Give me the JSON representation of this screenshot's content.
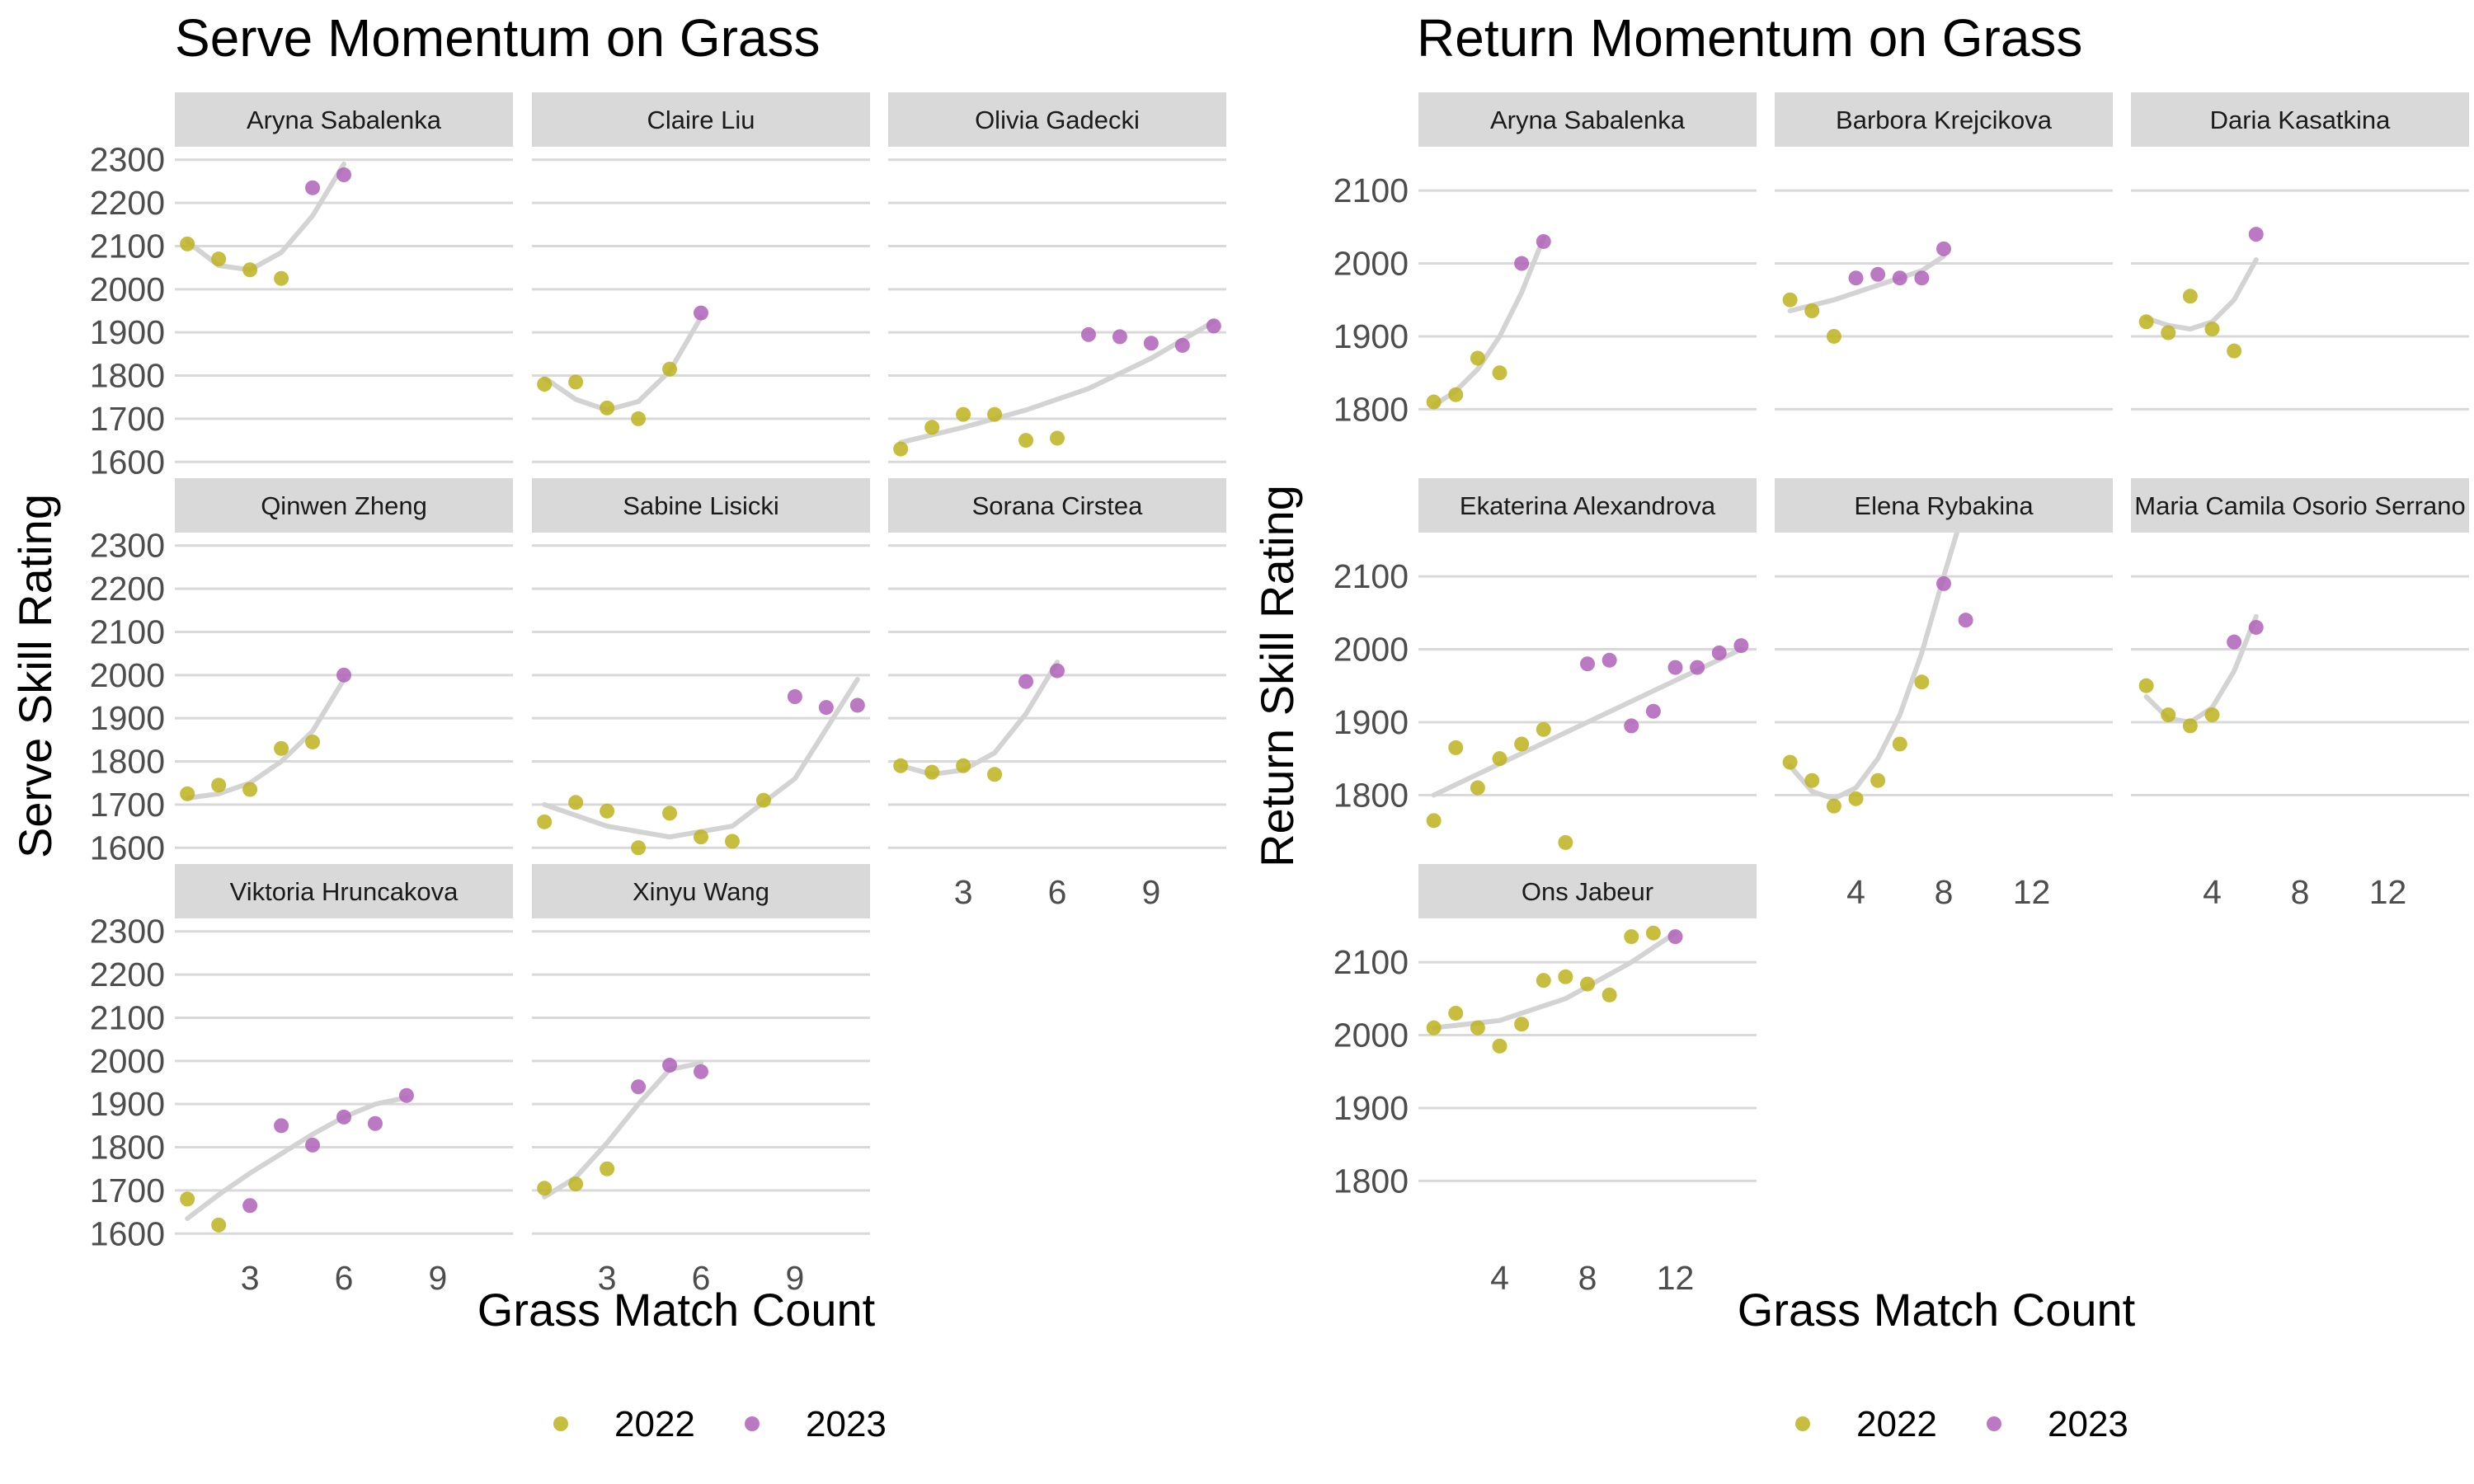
{
  "colors": {
    "2022": "#bdb31f",
    "2023": "#b062b8",
    "trend": "#d3d3d3",
    "strip": "#d9d9d9",
    "grid": "#d9d9d9"
  },
  "legend": [
    "2022",
    "2023"
  ],
  "chart_data": [
    {
      "type": "scatter",
      "title": "Serve Momentum on Grass",
      "xlabel": "Grass Match Count",
      "ylabel": "Serve Skill Rating",
      "xlim": [
        0.6,
        11.4
      ],
      "ylim": [
        1570,
        2330
      ],
      "xticks": [
        3,
        6,
        9
      ],
      "yticks": [
        1600,
        1700,
        1800,
        1900,
        2000,
        2100,
        2200,
        2300
      ],
      "legend_position": "bottom",
      "panels": [
        {
          "name": "Aryna Sabalenka",
          "points": [
            [
              1,
              2105,
              "2022"
            ],
            [
              2,
              2070,
              "2022"
            ],
            [
              3,
              2045,
              "2022"
            ],
            [
              4,
              2025,
              "2022"
            ],
            [
              5,
              2235,
              "2023"
            ],
            [
              6,
              2265,
              "2023"
            ]
          ],
          "trend": [
            [
              1,
              2110
            ],
            [
              2,
              2055
            ],
            [
              3,
              2045
            ],
            [
              4,
              2085
            ],
            [
              5,
              2170
            ],
            [
              6,
              2290
            ]
          ]
        },
        {
          "name": "Claire Liu",
          "points": [
            [
              1,
              1780,
              "2022"
            ],
            [
              2,
              1785,
              "2022"
            ],
            [
              3,
              1725,
              "2022"
            ],
            [
              4,
              1700,
              "2022"
            ],
            [
              5,
              1815,
              "2022"
            ],
            [
              6,
              1945,
              "2023"
            ]
          ],
          "trend": [
            [
              1,
              1795
            ],
            [
              2,
              1745
            ],
            [
              3,
              1720
            ],
            [
              4,
              1740
            ],
            [
              5,
              1810
            ],
            [
              6,
              1935
            ]
          ]
        },
        {
          "name": "Olivia Gadecki",
          "points": [
            [
              1,
              1630,
              "2022"
            ],
            [
              2,
              1680,
              "2022"
            ],
            [
              3,
              1710,
              "2022"
            ],
            [
              4,
              1710,
              "2022"
            ],
            [
              5,
              1650,
              "2022"
            ],
            [
              6,
              1655,
              "2022"
            ],
            [
              7,
              1895,
              "2023"
            ],
            [
              8,
              1890,
              "2023"
            ],
            [
              9,
              1875,
              "2023"
            ],
            [
              10,
              1870,
              "2023"
            ],
            [
              11,
              1915,
              "2023"
            ]
          ],
          "trend": [
            [
              1,
              1645
            ],
            [
              3,
              1680
            ],
            [
              5,
              1720
            ],
            [
              7,
              1770
            ],
            [
              9,
              1840
            ],
            [
              11,
              1925
            ]
          ]
        },
        {
          "name": "Qinwen Zheng",
          "points": [
            [
              1,
              1725,
              "2022"
            ],
            [
              2,
              1745,
              "2022"
            ],
            [
              3,
              1735,
              "2022"
            ],
            [
              4,
              1830,
              "2022"
            ],
            [
              5,
              1845,
              "2022"
            ],
            [
              6,
              2000,
              "2023"
            ]
          ],
          "trend": [
            [
              1,
              1715
            ],
            [
              2,
              1725
            ],
            [
              3,
              1750
            ],
            [
              4,
              1800
            ],
            [
              5,
              1870
            ],
            [
              6,
              1990
            ]
          ]
        },
        {
          "name": "Sabine Lisicki",
          "points": [
            [
              1,
              1660,
              "2022"
            ],
            [
              2,
              1705,
              "2022"
            ],
            [
              3,
              1685,
              "2022"
            ],
            [
              4,
              1600,
              "2022"
            ],
            [
              5,
              1680,
              "2022"
            ],
            [
              6,
              1625,
              "2022"
            ],
            [
              7,
              1615,
              "2022"
            ],
            [
              8,
              1710,
              "2022"
            ],
            [
              9,
              1950,
              "2023"
            ],
            [
              10,
              1925,
              "2023"
            ],
            [
              11,
              1930,
              "2023"
            ]
          ],
          "trend": [
            [
              1,
              1700
            ],
            [
              3,
              1650
            ],
            [
              5,
              1625
            ],
            [
              7,
              1650
            ],
            [
              9,
              1760
            ],
            [
              11,
              1990
            ]
          ]
        },
        {
          "name": "Sorana Cirstea",
          "points": [
            [
              1,
              1790,
              "2022"
            ],
            [
              2,
              1775,
              "2022"
            ],
            [
              3,
              1790,
              "2022"
            ],
            [
              4,
              1770,
              "2022"
            ],
            [
              5,
              1985,
              "2023"
            ],
            [
              6,
              2010,
              "2023"
            ]
          ],
          "trend": [
            [
              1,
              1790
            ],
            [
              2,
              1770
            ],
            [
              3,
              1780
            ],
            [
              4,
              1820
            ],
            [
              5,
              1910
            ],
            [
              6,
              2030
            ]
          ]
        },
        {
          "name": "Viktoria Hruncakova",
          "points": [
            [
              1,
              1680,
              "2022"
            ],
            [
              2,
              1620,
              "2022"
            ],
            [
              3,
              1665,
              "2023"
            ],
            [
              4,
              1850,
              "2023"
            ],
            [
              5,
              1805,
              "2023"
            ],
            [
              6,
              1870,
              "2023"
            ],
            [
              7,
              1855,
              "2023"
            ],
            [
              8,
              1920,
              "2023"
            ]
          ],
          "trend": [
            [
              1,
              1635
            ],
            [
              2,
              1690
            ],
            [
              3,
              1740
            ],
            [
              4,
              1785
            ],
            [
              5,
              1830
            ],
            [
              6,
              1870
            ],
            [
              7,
              1900
            ],
            [
              8,
              1915
            ]
          ]
        },
        {
          "name": "Xinyu Wang",
          "points": [
            [
              1,
              1705,
              "2022"
            ],
            [
              2,
              1715,
              "2022"
            ],
            [
              3,
              1750,
              "2022"
            ],
            [
              4,
              1940,
              "2023"
            ],
            [
              5,
              1990,
              "2023"
            ],
            [
              6,
              1975,
              "2023"
            ]
          ],
          "trend": [
            [
              1,
              1685
            ],
            [
              2,
              1730
            ],
            [
              3,
              1810
            ],
            [
              4,
              1900
            ],
            [
              5,
              1980
            ],
            [
              6,
              1995
            ]
          ]
        }
      ]
    },
    {
      "type": "scatter",
      "title": "Return Momentum on Grass",
      "xlabel": "Grass Match Count",
      "ylabel": "Return Skill Rating",
      "xlim": [
        0.3,
        15.7
      ],
      "ylim": [
        1710,
        2160
      ],
      "xticks": [
        4,
        8,
        12
      ],
      "yticks": [
        1800,
        1900,
        2000,
        2100
      ],
      "legend_position": "bottom",
      "panels": [
        {
          "name": "Aryna Sabalenka",
          "points": [
            [
              1,
              1810,
              "2022"
            ],
            [
              2,
              1820,
              "2022"
            ],
            [
              3,
              1870,
              "2022"
            ],
            [
              4,
              1850,
              "2022"
            ],
            [
              5,
              2000,
              "2023"
            ],
            [
              6,
              2030,
              "2023"
            ]
          ],
          "trend": [
            [
              1,
              1805
            ],
            [
              2,
              1825
            ],
            [
              3,
              1855
            ],
            [
              4,
              1900
            ],
            [
              5,
              1960
            ],
            [
              6,
              2035
            ]
          ]
        },
        {
          "name": "Barbora Krejcikova",
          "points": [
            [
              1,
              1950,
              "2022"
            ],
            [
              2,
              1935,
              "2022"
            ],
            [
              3,
              1900,
              "2022"
            ],
            [
              4,
              1980,
              "2023"
            ],
            [
              5,
              1985,
              "2023"
            ],
            [
              6,
              1980,
              "2023"
            ],
            [
              7,
              1980,
              "2023"
            ],
            [
              8,
              2020,
              "2023"
            ]
          ],
          "trend": [
            [
              1,
              1935
            ],
            [
              3,
              1950
            ],
            [
              5,
              1970
            ],
            [
              7,
              1990
            ],
            [
              8,
              2010
            ]
          ]
        },
        {
          "name": "Daria Kasatkina",
          "points": [
            [
              1,
              1920,
              "2022"
            ],
            [
              2,
              1905,
              "2022"
            ],
            [
              3,
              1955,
              "2022"
            ],
            [
              4,
              1910,
              "2022"
            ],
            [
              5,
              1880,
              "2022"
            ],
            [
              6,
              2040,
              "2023"
            ]
          ],
          "trend": [
            [
              1,
              1925
            ],
            [
              2,
              1915
            ],
            [
              3,
              1910
            ],
            [
              4,
              1920
            ],
            [
              5,
              1950
            ],
            [
              6,
              2005
            ]
          ]
        },
        {
          "name": "Ekaterina Alexandrova",
          "points": [
            [
              1,
              1765,
              "2022"
            ],
            [
              2,
              1865,
              "2022"
            ],
            [
              3,
              1810,
              "2022"
            ],
            [
              4,
              1850,
              "2022"
            ],
            [
              5,
              1870,
              "2022"
            ],
            [
              6,
              1890,
              "2022"
            ],
            [
              7,
              1735,
              "2022"
            ],
            [
              8,
              1980,
              "2023"
            ],
            [
              9,
              1985,
              "2023"
            ],
            [
              10,
              1895,
              "2023"
            ],
            [
              11,
              1915,
              "2023"
            ],
            [
              12,
              1975,
              "2023"
            ],
            [
              13,
              1975,
              "2023"
            ],
            [
              14,
              1995,
              "2023"
            ],
            [
              15,
              2005,
              "2023"
            ]
          ],
          "trend": [
            [
              1,
              1800
            ],
            [
              15,
              2000
            ]
          ]
        },
        {
          "name": "Elena Rybakina",
          "points": [
            [
              1,
              1845,
              "2022"
            ],
            [
              2,
              1820,
              "2022"
            ],
            [
              3,
              1785,
              "2022"
            ],
            [
              4,
              1795,
              "2022"
            ],
            [
              5,
              1820,
              "2022"
            ],
            [
              6,
              1870,
              "2022"
            ],
            [
              7,
              1955,
              "2022"
            ],
            [
              8,
              2090,
              "2023"
            ],
            [
              9,
              2040,
              "2023"
            ]
          ],
          "trend": [
            [
              1,
              1840
            ],
            [
              2,
              1805
            ],
            [
              3,
              1795
            ],
            [
              4,
              1810
            ],
            [
              5,
              1850
            ],
            [
              6,
              1910
            ],
            [
              7,
              1995
            ],
            [
              8,
              2100
            ],
            [
              8.6,
              2160
            ]
          ]
        },
        {
          "name": "Maria Camila Osorio Serrano",
          "points": [
            [
              1,
              1950,
              "2022"
            ],
            [
              2,
              1910,
              "2022"
            ],
            [
              3,
              1895,
              "2022"
            ],
            [
              4,
              1910,
              "2022"
            ],
            [
              5,
              2010,
              "2023"
            ],
            [
              6,
              2030,
              "2023"
            ]
          ],
          "trend": [
            [
              1,
              1935
            ],
            [
              2,
              1905
            ],
            [
              3,
              1900
            ],
            [
              4,
              1920
            ],
            [
              5,
              1970
            ],
            [
              6,
              2045
            ]
          ]
        },
        {
          "name": "Ons Jabeur",
          "points": [
            [
              1,
              2010,
              "2022"
            ],
            [
              2,
              2030,
              "2022"
            ],
            [
              3,
              2010,
              "2022"
            ],
            [
              4,
              1985,
              "2022"
            ],
            [
              5,
              2015,
              "2022"
            ],
            [
              6,
              2075,
              "2022"
            ],
            [
              7,
              2080,
              "2022"
            ],
            [
              8,
              2070,
              "2022"
            ],
            [
              9,
              2055,
              "2022"
            ],
            [
              10,
              2135,
              "2022"
            ],
            [
              11,
              2140,
              "2022"
            ],
            [
              12,
              2135,
              "2023"
            ]
          ],
          "trend": [
            [
              1,
              2010
            ],
            [
              4,
              2020
            ],
            [
              7,
              2050
            ],
            [
              10,
              2100
            ],
            [
              12,
              2140
            ]
          ]
        }
      ]
    }
  ]
}
